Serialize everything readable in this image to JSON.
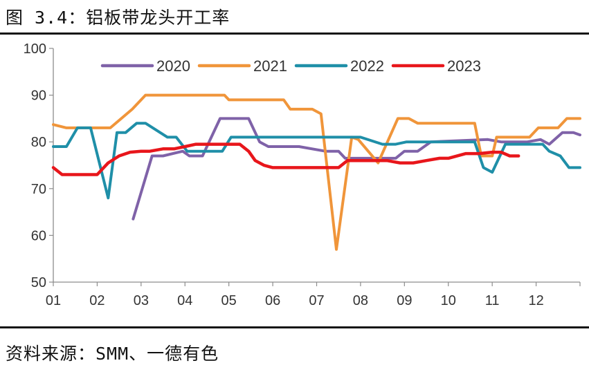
{
  "header": {
    "title": "图 3.4：铝板带龙头开工率"
  },
  "footer": {
    "source": "资料来源：SMM、一德有色"
  },
  "chart_data": {
    "type": "line",
    "title": "图 3.4：铝板带龙头开工率",
    "xlabel": "",
    "ylabel": "",
    "ylim": [
      50,
      100
    ],
    "yticks": [
      50,
      60,
      70,
      80,
      90,
      100
    ],
    "xlim": [
      1,
      13
    ],
    "x_tick_labels": [
      "01",
      "02",
      "03",
      "04",
      "05",
      "06",
      "07",
      "08",
      "09",
      "10",
      "11",
      "12"
    ],
    "legend_position": "top",
    "grid": false,
    "series": [
      {
        "name": "2020",
        "color": "#7F62A8",
        "x": [
          2.82,
          3.25,
          3.5,
          3.95,
          4.1,
          4.4,
          4.8,
          5.45,
          5.7,
          5.9,
          6.6,
          7.2,
          7.5,
          7.65,
          8.8,
          9.0,
          9.3,
          9.6,
          10.9,
          11.2,
          11.8,
          12.1,
          12.3,
          12.6,
          12.85,
          13.0
        ],
        "values": [
          63.5,
          77,
          77,
          78,
          77,
          77,
          85,
          85,
          80,
          79,
          79,
          78,
          78,
          76.5,
          76.5,
          78,
          78,
          80,
          80.5,
          80,
          80,
          80.5,
          79.5,
          82,
          82,
          81.5
        ]
      },
      {
        "name": "2021",
        "color": "#F0953A",
        "x": [
          1.0,
          1.3,
          2.3,
          2.8,
          3.1,
          4.9,
          5.0,
          6.25,
          6.4,
          6.9,
          7.1,
          7.45,
          7.8,
          7.95,
          8.4,
          8.85,
          9.1,
          9.3,
          10.45,
          10.6,
          10.75,
          11.0,
          11.1,
          11.85,
          12.05,
          12.5,
          12.7,
          13.0
        ],
        "values": [
          83.7,
          83,
          83,
          87,
          90,
          90,
          89,
          89,
          87,
          87,
          86,
          57,
          81,
          80.5,
          75.5,
          85,
          85,
          84,
          84,
          84,
          77,
          77,
          81,
          81,
          83,
          83,
          85,
          85
        ]
      },
      {
        "name": "2022",
        "color": "#1F8FA8",
        "x": [
          1.0,
          1.3,
          1.55,
          1.85,
          2.25,
          2.45,
          2.65,
          2.9,
          3.1,
          3.6,
          3.8,
          4.05,
          4.15,
          4.3,
          4.85,
          5.05,
          8.0,
          8.5,
          8.8,
          9.05,
          10.2,
          10.4,
          10.6,
          10.8,
          11.0,
          11.3,
          12.15,
          12.3,
          12.55,
          12.75,
          13.0
        ],
        "values": [
          79,
          79,
          83,
          83,
          68,
          82,
          82,
          84,
          84,
          81,
          81,
          78,
          78,
          78,
          78,
          81,
          81,
          79.5,
          79.5,
          80,
          80,
          80,
          80,
          74.5,
          73.5,
          79.5,
          79.5,
          78,
          77,
          74.5,
          74.5
        ]
      },
      {
        "name": "2023",
        "color": "#E8161B",
        "x": [
          1.0,
          1.2,
          1.5,
          2.0,
          2.25,
          2.5,
          2.75,
          3.0,
          3.2,
          3.5,
          3.75,
          4.0,
          4.25,
          4.5,
          4.75,
          5.0,
          5.25,
          5.45,
          5.6,
          5.8,
          6.0,
          6.3,
          7.0,
          7.5,
          7.7,
          7.95,
          8.2,
          8.6,
          8.9,
          9.2,
          9.5,
          9.8,
          10.0,
          10.4,
          10.7,
          11.0,
          11.2,
          11.4,
          11.6
        ],
        "values": [
          74.5,
          73,
          73,
          73,
          75.5,
          77,
          77.8,
          78,
          78,
          78.5,
          78.5,
          79,
          79.5,
          79.5,
          79.5,
          79.5,
          79.5,
          78,
          76,
          75,
          74.5,
          74.5,
          74.5,
          74.5,
          76,
          76,
          76,
          76,
          75.5,
          75.5,
          76,
          76.5,
          76.5,
          77.5,
          77.5,
          77.8,
          77.8,
          77,
          77
        ]
      }
    ]
  }
}
